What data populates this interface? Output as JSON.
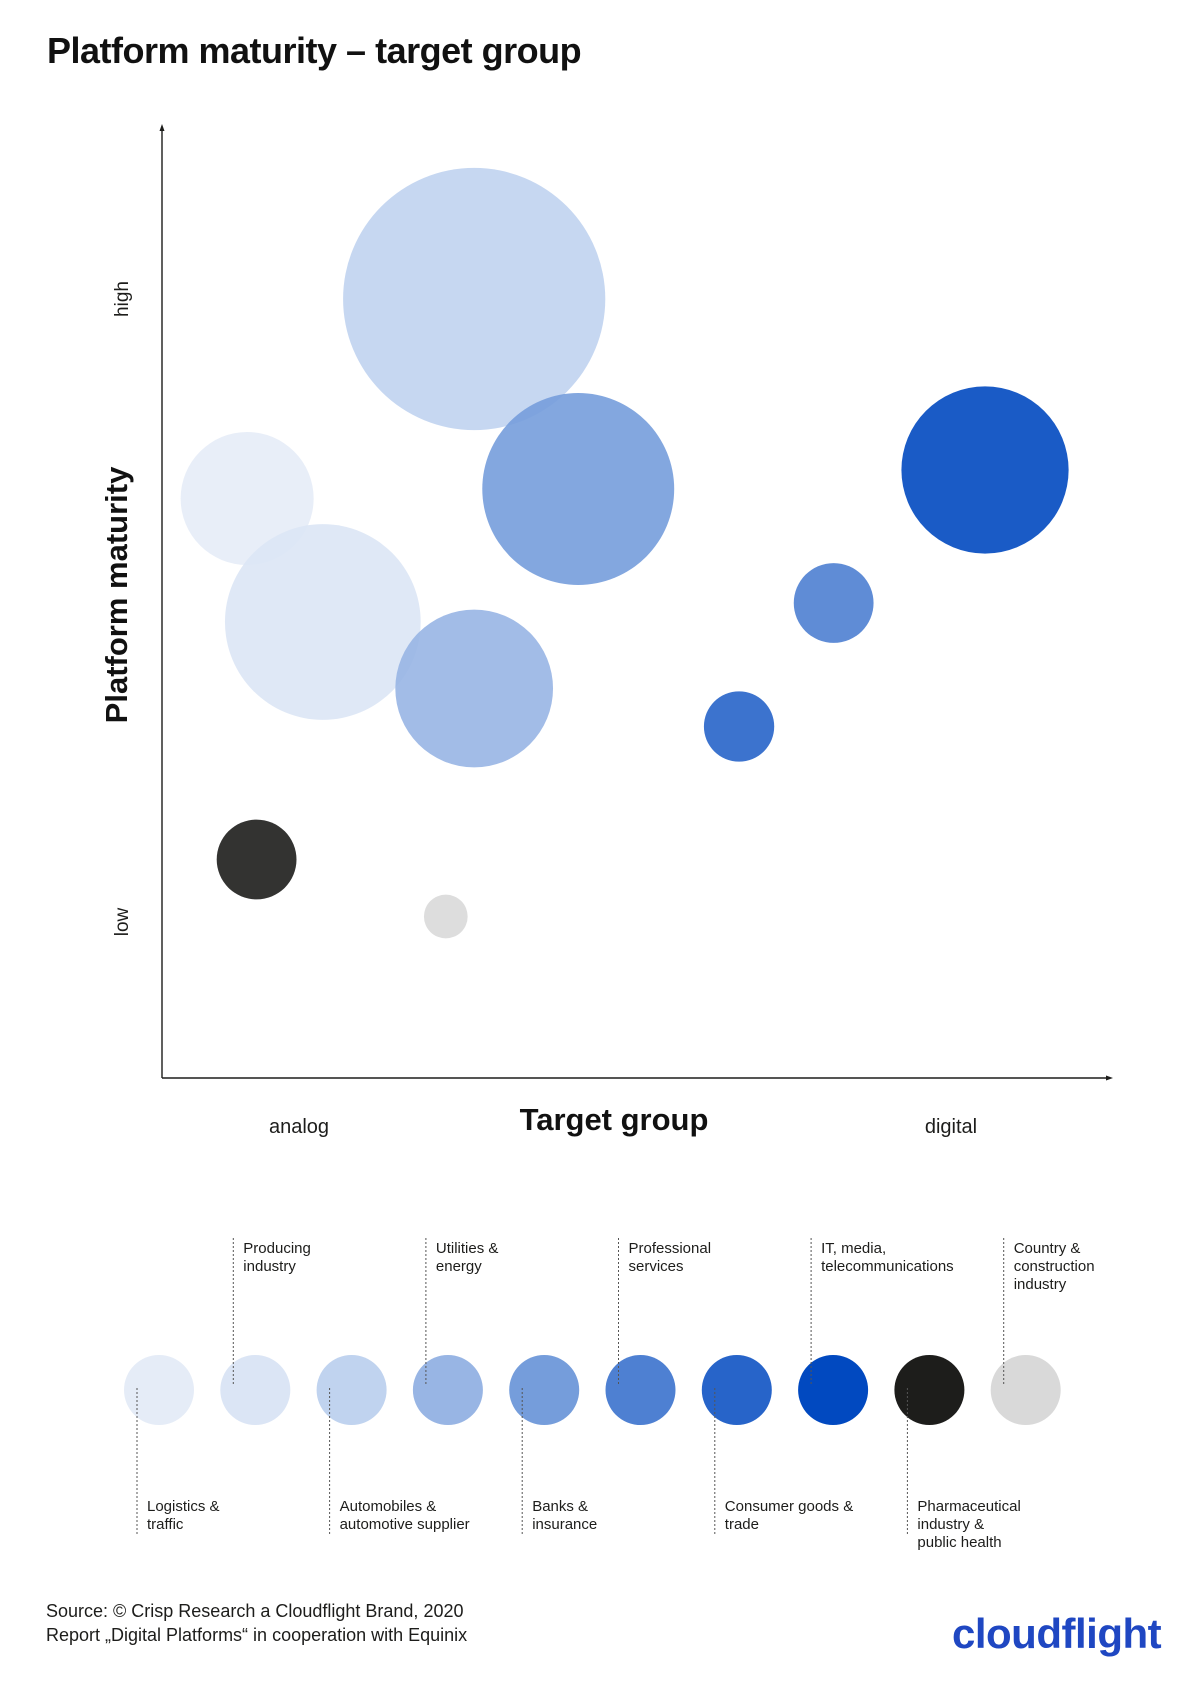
{
  "title": "Platform maturity – target group",
  "colors": {
    "logistics": "#e5ecf7",
    "producing": "#dbe5f5",
    "automobiles": "#c0d3ef",
    "utilities": "#98b5e4",
    "banks": "#759ddb",
    "professional": "#4e80d2",
    "consumer": "#2764c9",
    "it_media": "#0149c0",
    "pharma": "#1d1d1b",
    "country": "#d9d9d9",
    "logo": "#1f47c2"
  },
  "chart_data": {
    "type": "bubble",
    "title": "Platform maturity – target group",
    "xlabel": "Target group",
    "ylabel": "Platform maturity",
    "x_tick_labels": [
      "analog",
      "digital"
    ],
    "y_tick_labels": [
      "low",
      "high"
    ],
    "xlim": [
      0,
      10
    ],
    "ylim": [
      0,
      10
    ],
    "bubble_size_unit": "relative radius",
    "series": [
      {
        "name": "Logistics & traffic",
        "x": 0.9,
        "y": 6.1,
        "size": 0.7,
        "color": "#e5ecf7"
      },
      {
        "name": "Producing industry",
        "x": 1.7,
        "y": 4.8,
        "size": 1.03,
        "color": "#dbe5f5"
      },
      {
        "name": "Automobiles & automotive supplier",
        "x": 3.3,
        "y": 8.2,
        "size": 1.38,
        "color": "#c0d3ef"
      },
      {
        "name": "Utilities & energy",
        "x": 3.3,
        "y": 4.1,
        "size": 0.83,
        "color": "#98b5e4"
      },
      {
        "name": "Banks & insurance",
        "x": 4.4,
        "y": 6.2,
        "size": 1.01,
        "color": "#759ddb"
      },
      {
        "name": "Professional services",
        "x": 7.1,
        "y": 5.0,
        "size": 0.42,
        "color": "#4e80d2"
      },
      {
        "name": "Consumer goods & trade",
        "x": 6.1,
        "y": 3.7,
        "size": 0.37,
        "color": "#2764c9"
      },
      {
        "name": "IT, media, telecommunications",
        "x": 8.7,
        "y": 6.4,
        "size": 0.88,
        "color": "#0149c0"
      },
      {
        "name": "Pharmaceutical industry & public health",
        "x": 1.0,
        "y": 2.3,
        "size": 0.42,
        "color": "#1d1d1b"
      },
      {
        "name": "Country & construction industry",
        "x": 3.0,
        "y": 1.7,
        "size": 0.23,
        "color": "#d9d9d9"
      }
    ]
  },
  "legend": [
    {
      "label": "Logistics &\ntraffic",
      "color": "#e5ecf7",
      "position": "below"
    },
    {
      "label": "Producing\nindustry",
      "color": "#dbe5f5",
      "position": "above"
    },
    {
      "label": "Automobiles &\nautomotive supplier",
      "color": "#c0d3ef",
      "position": "below"
    },
    {
      "label": "Utilities &\nenergy",
      "color": "#98b5e4",
      "position": "above"
    },
    {
      "label": "Banks &\ninsurance",
      "color": "#759ddb",
      "position": "below"
    },
    {
      "label": "Professional\nservices",
      "color": "#4e80d2",
      "position": "above"
    },
    {
      "label": "Consumer goods &\ntrade",
      "color": "#2764c9",
      "position": "below"
    },
    {
      "label": "IT, media,\ntelecommunications",
      "color": "#0149c0",
      "position": "above"
    },
    {
      "label": "Pharmaceutical\nindustry &\npublic health",
      "color": "#1d1d1b",
      "position": "below"
    },
    {
      "label": "Country &\nconstruction\nindustry",
      "color": "#d9d9d9",
      "position": "above"
    }
  ],
  "source": {
    "line1": "Source: © Crisp Research a Cloudflight Brand, 2020",
    "line2": "Report „Digital Platforms“ in cooperation with Equinix"
  },
  "logo": {
    "text": "cloudflight"
  }
}
